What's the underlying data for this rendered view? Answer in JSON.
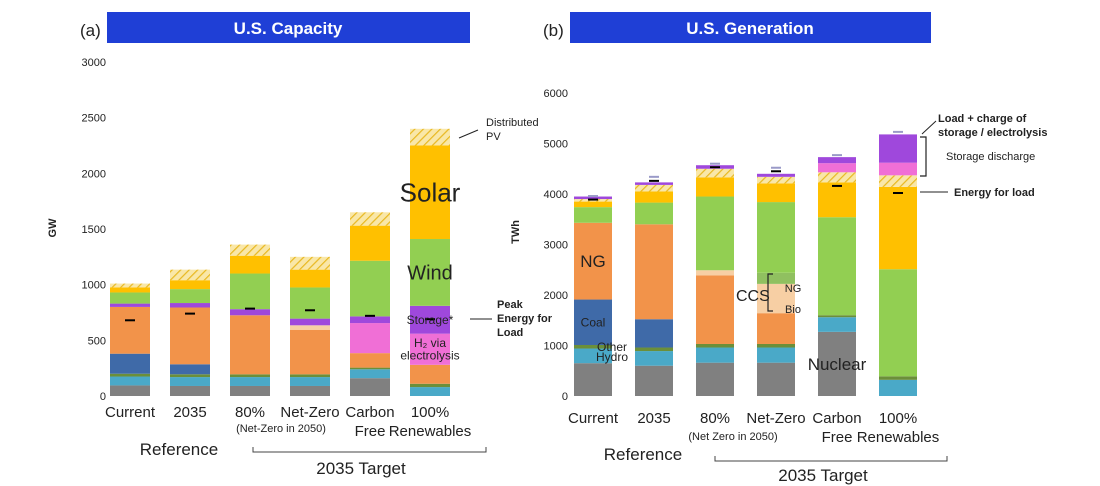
{
  "colors": {
    "nuclear": "#808080",
    "hydro": "#4aa9c8",
    "other": "#6b8f3a",
    "coal": "#3f6aa8",
    "ng": "#f2934a",
    "ng_ccs": "#f7cfa4",
    "bio_ccs": "#90c060",
    "wind": "#92cf52",
    "storage": "#9f48dc",
    "h2": "#f06fd6",
    "solar": "#ffc000",
    "distributed_pv": "#f5d880",
    "title_bar": "#1f3fd6"
  },
  "chart_data": [
    {
      "type": "bar",
      "stacked": true,
      "panel_label": "(a)",
      "title": "U.S. Capacity",
      "ylabel": "GW",
      "ylim": [
        0,
        3000
      ],
      "yticks": [
        "0",
        "500",
        "1000",
        "1500",
        "2000",
        "2500",
        "3000"
      ],
      "grid": false,
      "categories": [
        "Current",
        "2035",
        "80%",
        "Net-Zero",
        "Carbon Free",
        "100% Renewables"
      ],
      "category_lines": [
        [
          "Current"
        ],
        [
          "2035"
        ],
        [
          "80%"
        ],
        [
          "Net-Zero"
        ],
        [
          "Carbon",
          "Free"
        ],
        [
          "100%",
          "Renewables"
        ]
      ],
      "series": [
        {
          "key": "nuclear",
          "values": [
            95,
            90,
            90,
            90,
            160,
            0
          ]
        },
        {
          "key": "hydro",
          "values": [
            80,
            80,
            80,
            80,
            80,
            80
          ]
        },
        {
          "key": "other",
          "values": [
            25,
            25,
            25,
            25,
            15,
            30
          ]
        },
        {
          "key": "coal",
          "values": [
            180,
            90,
            0,
            0,
            0,
            0
          ]
        },
        {
          "key": "ng",
          "values": [
            420,
            510,
            530,
            400,
            130,
            170
          ]
        },
        {
          "key": "ng_ccs",
          "values": [
            0,
            0,
            0,
            40,
            0,
            0
          ]
        },
        {
          "key": "h2",
          "values": [
            0,
            0,
            0,
            0,
            270,
            280
          ]
        },
        {
          "key": "storage",
          "values": [
            30,
            40,
            55,
            60,
            60,
            250
          ]
        },
        {
          "key": "wind",
          "values": [
            100,
            125,
            320,
            280,
            500,
            600
          ]
        },
        {
          "key": "solar",
          "values": [
            45,
            80,
            160,
            160,
            315,
            840
          ]
        },
        {
          "key": "distributed_pv",
          "values": [
            35,
            95,
            100,
            115,
            120,
            150
          ]
        }
      ],
      "markers": [
        680,
        740,
        785,
        770,
        720,
        690
      ],
      "bar_labels": [
        {
          "series": "solar",
          "lines": [
            "Solar"
          ]
        },
        {
          "series": "wind",
          "lines": [
            "Wind"
          ]
        },
        {
          "series": "storage",
          "lines": [
            "Storage*"
          ]
        },
        {
          "series": "h2",
          "lines": [
            "H₂ via",
            "electrolysis"
          ]
        }
      ],
      "annotations": {
        "distributed_pv": [
          "Distributed",
          "PV"
        ],
        "peak_load": [
          "Peak",
          "Energy for",
          "Load"
        ]
      },
      "subnote": "(Net-Zero in 2050)",
      "group_reference": "Reference",
      "group_target": "2035 Target"
    },
    {
      "type": "bar",
      "stacked": true,
      "panel_label": "(b)",
      "title": "U.S. Generation",
      "ylabel": "TWh",
      "ylim": [
        0,
        6000
      ],
      "yticks": [
        "0",
        "1000",
        "2000",
        "3000",
        "4000",
        "5000",
        "6000"
      ],
      "grid": false,
      "categories": [
        "Current",
        "2035",
        "80%",
        "Net-Zero",
        "Carbon Free",
        "100% Renewables"
      ],
      "category_lines": [
        [
          "Current"
        ],
        [
          "2035"
        ],
        [
          "80%"
        ],
        [
          "Net-Zero"
        ],
        [
          "Carbon",
          "Free"
        ],
        [
          "100%",
          "Renewables"
        ]
      ],
      "series": [
        {
          "key": "nuclear",
          "values": [
            650,
            600,
            660,
            660,
            1270,
            0
          ]
        },
        {
          "key": "hydro",
          "values": [
            290,
            290,
            300,
            300,
            290,
            320
          ]
        },
        {
          "key": "other",
          "values": [
            70,
            70,
            70,
            70,
            40,
            70
          ]
        },
        {
          "key": "coal",
          "values": [
            900,
            560,
            0,
            0,
            0,
            0
          ]
        },
        {
          "key": "ng",
          "values": [
            1520,
            1880,
            1360,
            610,
            0,
            0
          ]
        },
        {
          "key": "ng_ccs",
          "values": [
            0,
            0,
            100,
            580,
            0,
            0
          ]
        },
        {
          "key": "bio_ccs",
          "values": [
            0,
            0,
            0,
            220,
            0,
            0
          ]
        },
        {
          "key": "wind",
          "values": [
            310,
            430,
            1460,
            1400,
            1940,
            2120
          ]
        },
        {
          "key": "solar",
          "values": [
            110,
            220,
            380,
            370,
            690,
            1630
          ]
        },
        {
          "key": "distributed_pv",
          "values": [
            50,
            130,
            170,
            130,
            200,
            230
          ]
        },
        {
          "key": "h2",
          "values": [
            0,
            0,
            0,
            0,
            180,
            250
          ]
        },
        {
          "key": "storage",
          "values": [
            50,
            50,
            70,
            60,
            120,
            560
          ]
        }
      ],
      "markers": [
        3890,
        4260,
        4530,
        4450,
        4160,
        4020
      ],
      "load_markers": [
        3960,
        4340,
        4600,
        4520,
        4770,
        5230
      ],
      "bar_labels": [
        {
          "series": "ng",
          "lines": [
            "NG"
          ]
        },
        {
          "series": "coal",
          "lines": [
            "Coal"
          ]
        },
        {
          "series": "nuclear",
          "lines": [
            "Nuclear"
          ]
        }
      ],
      "stacked_labels": [
        "Other",
        "Hydro"
      ],
      "ccs_labels": {
        "group": "CCS",
        "ng": "NG",
        "bio": "Bio"
      },
      "annotations": {
        "load_charge": [
          "Load + charge of",
          "storage / electrolysis"
        ],
        "storage_discharge": "Storage discharge",
        "energy_for_load": "Energy for load"
      },
      "subnote": "(Net Zero in 2050)",
      "group_reference": "Reference",
      "group_target": "2035 Target"
    }
  ]
}
